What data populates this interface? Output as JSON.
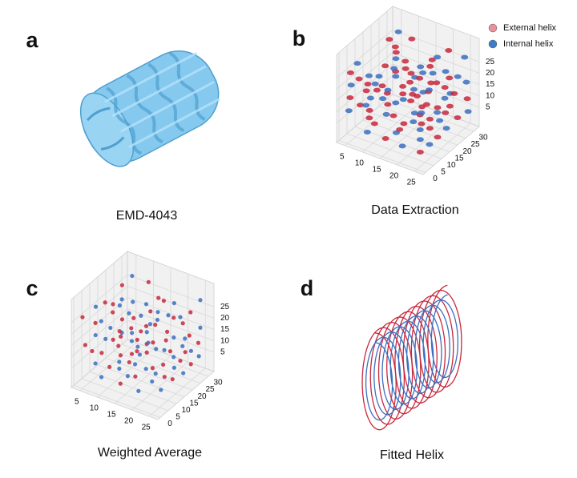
{
  "legend": [
    {
      "label": "External helix",
      "color": "#e8909c"
    },
    {
      "label": "Internal  helix",
      "color": "#3d7cc9"
    }
  ],
  "panels": [
    {
      "letter": "a",
      "caption": "EMD-4043"
    },
    {
      "letter": "b",
      "caption": "Data Extraction",
      "x_ticks": [
        5,
        10,
        15,
        20,
        25
      ],
      "y_ticks": [
        0,
        5,
        10,
        15,
        20,
        25,
        30
      ],
      "z_ticks": [
        5,
        10,
        15,
        20,
        25
      ]
    },
    {
      "letter": "c",
      "caption": "Weighted Average",
      "x_ticks": [
        5,
        10,
        15,
        20,
        25
      ],
      "y_ticks": [
        0,
        5,
        10,
        15,
        20,
        25,
        30
      ],
      "z_ticks": [
        5,
        10,
        15,
        20,
        25
      ]
    },
    {
      "letter": "d",
      "caption": "Fitted Helix"
    }
  ],
  "point_colors": {
    "external": "#c8283c",
    "internal": "#3b6fc0"
  }
}
